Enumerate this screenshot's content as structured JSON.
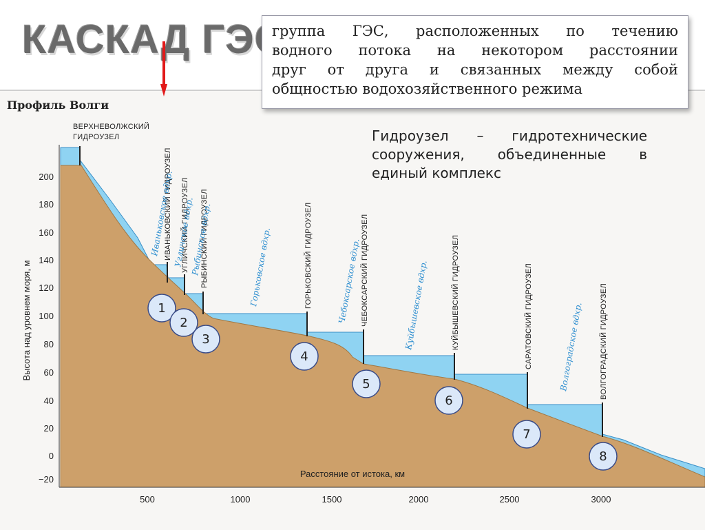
{
  "slide": {
    "title": "КАСКАД ГЭС",
    "definition_lines": [
      "группа ГЭС, расположенных по течению",
      "водного потока на некотором расстоянии",
      "друг от друга и связанных между собой",
      "общностью водохозяйственного режима"
    ],
    "hydro_lines": [
      "Гидроузел – гидротехнические",
      "сооружения, объединенные в",
      "единый комплекс"
    ]
  },
  "chart": {
    "title": "Профиль Волги",
    "ylabel": "Высота над уровнем моря, м",
    "xlabel": "Расстояние от истока, км",
    "y_ticks": [
      "200",
      "180",
      "160",
      "140",
      "120",
      "100",
      "80",
      "60",
      "40",
      "20",
      "0",
      "−20"
    ],
    "x_ticks": [
      "500",
      "1000",
      "1500",
      "2000",
      "2500",
      "3000"
    ],
    "dams": [
      {
        "label_1": "ВЕРХНЕВОЛЖСКИЙ",
        "label_2": "ГИДРОУЗЕЛ"
      },
      {
        "label": "ИВАНЬКОВСКИЙ ГИДРОУЗЕЛ"
      },
      {
        "label": "УГЛИЧСКИЙ ГИДРОУЗЕЛ"
      },
      {
        "label": "РЫБИНСКИЙ ГИДРОУЗЕЛ"
      },
      {
        "label": "ГОРЬКОВСКИЙ ГИДРОУЗЕЛ"
      },
      {
        "label": "ЧЕБОКСАРСКИЙ ГИДРОУЗЕЛ"
      },
      {
        "label": "КУЙБЫШЕВСКИЙ ГИДРОУЗЕЛ"
      },
      {
        "label": "САРАТОВСКИЙ ГИДРОУЗЕЛ"
      },
      {
        "label": "ВОЛГОГРАДСКИЙ ГИДРОУЗЕЛ"
      }
    ],
    "reservoirs": [
      "Иваньковское вдхр.",
      "Угличское вдхр.",
      "Рыбинское вдхр.",
      "Горьковское вдхр.",
      "Чебоксарское вдхр.",
      "Куйбышевское вдхр.",
      "Волгоградское вдхр."
    ],
    "markers": [
      "1",
      "2",
      "3",
      "4",
      "5",
      "6",
      "7",
      "8"
    ],
    "colors": {
      "ground": "#cda06a",
      "water": "#8fd3f2",
      "water_stroke": "#3a8fc7",
      "arrow": "#e21a1a"
    }
  }
}
